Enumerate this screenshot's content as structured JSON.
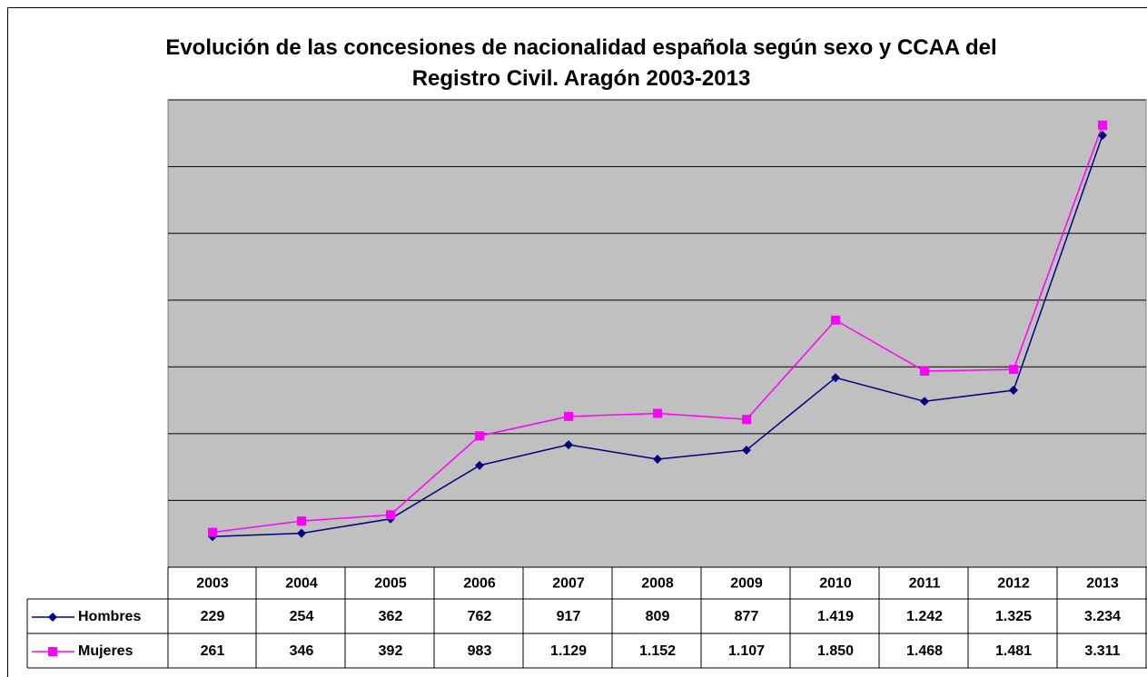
{
  "chart_data": {
    "type": "line",
    "title": "Evolución de las concesiones de nacionalidad española según sexo y CCAA del Registro Civil. Aragón 2003-2013",
    "categories": [
      "2003",
      "2004",
      "2005",
      "2006",
      "2007",
      "2008",
      "2009",
      "2010",
      "2011",
      "2012",
      "2013"
    ],
    "series": [
      {
        "name": "Hombres",
        "color": "#000080",
        "marker": "diamond",
        "values": [
          229,
          254,
          362,
          762,
          917,
          809,
          877,
          1419,
          1242,
          1325,
          3234
        ],
        "value_labels": [
          "229",
          "254",
          "362",
          "762",
          "917",
          "809",
          "877",
          "1.419",
          "1.242",
          "1.325",
          "3.234"
        ]
      },
      {
        "name": "Mujeres",
        "color": "#ff00ff",
        "marker": "square",
        "values": [
          261,
          346,
          392,
          983,
          1129,
          1152,
          1107,
          1850,
          1468,
          1481,
          3311
        ],
        "value_labels": [
          "261",
          "346",
          "392",
          "983",
          "1.129",
          "1.152",
          "1.107",
          "1.850",
          "1.468",
          "1.481",
          "3.311"
        ]
      }
    ],
    "ylim": [
      0,
      3500
    ],
    "yticks": [
      0,
      500,
      1000,
      1500,
      2000,
      2500,
      3000,
      3500
    ],
    "grid": true,
    "plot_background": "#c0c0c0"
  }
}
